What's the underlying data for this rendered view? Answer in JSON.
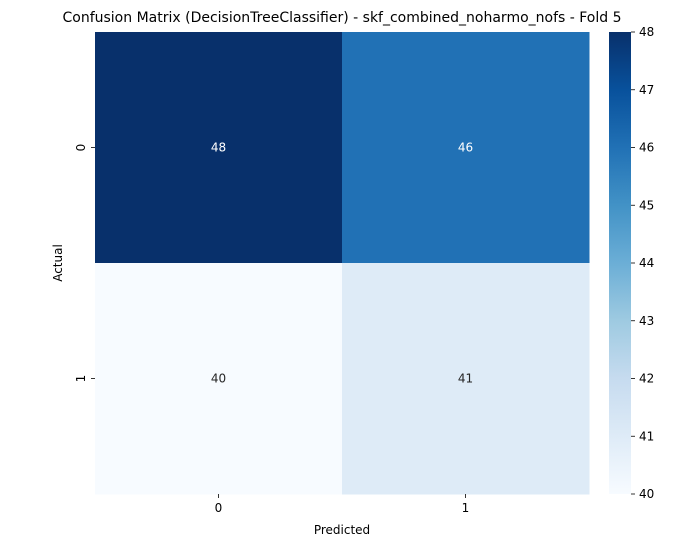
{
  "chart_data": {
    "type": "heatmap",
    "title": "Confusion Matrix (DecisionTreeClassifier) - skf_combined_noharmo_nofs - Fold 5",
    "xlabel": "Predicted",
    "ylabel": "Actual",
    "x_categories": [
      "0",
      "1"
    ],
    "y_categories": [
      "0",
      "1"
    ],
    "values": [
      [
        48,
        46
      ],
      [
        40,
        41
      ]
    ],
    "colormap": "Blues",
    "colorbar": {
      "min": 40,
      "max": 48,
      "ticks": [
        "40",
        "41",
        "42",
        "43",
        "44",
        "45",
        "46",
        "47",
        "48"
      ]
    }
  }
}
